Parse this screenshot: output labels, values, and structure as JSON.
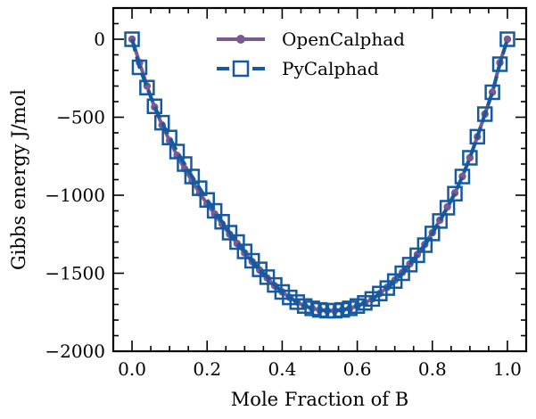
{
  "colors": {
    "opencalphad": "#7b5a93",
    "pycalphad": "#155aa0",
    "axis": "#000000",
    "background": "#ffffff"
  },
  "chart_data": {
    "type": "line",
    "xlabel": "Mole Fraction of B",
    "ylabel": "Gibbs energy  J/mol",
    "xlim": [
      -0.05,
      1.05
    ],
    "ylim": [
      -2000,
      200
    ],
    "xticks": [
      0.0,
      0.2,
      0.4,
      0.6,
      0.8,
      1.0
    ],
    "xtick_labels": [
      "0.0",
      "0.2",
      "0.4",
      "0.6",
      "0.8",
      "1.0"
    ],
    "yticks": [
      0,
      -500,
      -1000,
      -1500,
      -2000
    ],
    "ytick_labels": [
      "0",
      "−500",
      "−1000",
      "−1500",
      "−2000"
    ],
    "grid": false,
    "legend_position": "top-center",
    "series": [
      {
        "name": "OpenCalphad",
        "marker": "dot",
        "x": [
          0.0,
          0.02,
          0.04,
          0.06,
          0.08,
          0.1,
          0.12,
          0.14,
          0.16,
          0.18,
          0.2,
          0.22,
          0.24,
          0.26,
          0.28,
          0.3,
          0.32,
          0.34,
          0.36,
          0.38,
          0.4,
          0.42,
          0.44,
          0.46,
          0.48,
          0.5,
          0.52,
          0.54,
          0.56,
          0.58,
          0.6,
          0.62,
          0.64,
          0.66,
          0.68,
          0.7,
          0.72,
          0.74,
          0.76,
          0.78,
          0.8,
          0.82,
          0.84,
          0.86,
          0.88,
          0.9,
          0.92,
          0.94,
          0.96,
          0.98,
          1.0
        ],
        "y": [
          0,
          -150,
          -300,
          -435,
          -550,
          -650,
          -745,
          -830,
          -910,
          -985,
          -1055,
          -1120,
          -1185,
          -1250,
          -1310,
          -1370,
          -1425,
          -1480,
          -1530,
          -1580,
          -1620,
          -1655,
          -1685,
          -1710,
          -1725,
          -1735,
          -1740,
          -1740,
          -1735,
          -1725,
          -1710,
          -1690,
          -1665,
          -1630,
          -1590,
          -1545,
          -1495,
          -1440,
          -1380,
          -1315,
          -1240,
          -1160,
          -1075,
          -985,
          -880,
          -760,
          -625,
          -480,
          -340,
          -150,
          0
        ]
      },
      {
        "name": "PyCalphad",
        "marker": "square",
        "x": [
          0.0,
          0.02,
          0.04,
          0.06,
          0.08,
          0.1,
          0.12,
          0.14,
          0.16,
          0.18,
          0.2,
          0.22,
          0.24,
          0.26,
          0.28,
          0.3,
          0.32,
          0.34,
          0.36,
          0.38,
          0.4,
          0.42,
          0.44,
          0.46,
          0.48,
          0.5,
          0.52,
          0.54,
          0.56,
          0.58,
          0.6,
          0.62,
          0.64,
          0.66,
          0.68,
          0.7,
          0.72,
          0.74,
          0.76,
          0.78,
          0.8,
          0.82,
          0.84,
          0.86,
          0.88,
          0.9,
          0.92,
          0.94,
          0.96,
          0.98,
          1.0
        ],
        "y": [
          0,
          -180,
          -310,
          -430,
          -535,
          -630,
          -720,
          -800,
          -880,
          -955,
          -1030,
          -1100,
          -1170,
          -1240,
          -1300,
          -1360,
          -1420,
          -1475,
          -1525,
          -1575,
          -1620,
          -1655,
          -1685,
          -1710,
          -1725,
          -1735,
          -1740,
          -1740,
          -1735,
          -1725,
          -1710,
          -1690,
          -1665,
          -1630,
          -1595,
          -1550,
          -1500,
          -1445,
          -1385,
          -1320,
          -1245,
          -1165,
          -1080,
          -990,
          -880,
          -760,
          -625,
          -480,
          -340,
          -160,
          0
        ]
      }
    ]
  }
}
